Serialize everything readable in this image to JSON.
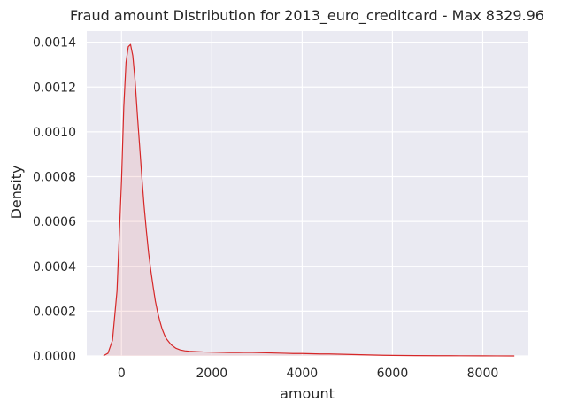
{
  "chart_data": {
    "type": "area",
    "title": "Fraud amount Distribution for 2013_euro_creditcard - Max 8329.96",
    "xlabel": "amount",
    "ylabel": "Density",
    "xlim": [
      -770,
      9010
    ],
    "ylim": [
      0,
      0.00145
    ],
    "xticks": [
      0,
      2000,
      4000,
      6000,
      8000
    ],
    "xtick_labels": [
      "0",
      "2000",
      "4000",
      "6000",
      "8000"
    ],
    "yticks": [
      0,
      0.0002,
      0.0004,
      0.0006,
      0.0008,
      0.001,
      0.0012,
      0.0014
    ],
    "ytick_labels": [
      "0.0000",
      "0.0002",
      "0.0004",
      "0.0006",
      "0.0008",
      "0.0010",
      "0.0012",
      "0.0014"
    ],
    "grid": true,
    "series": [
      {
        "color": "#d62728",
        "x": [
          -400,
          -300,
          -200,
          -100,
          0,
          50,
          100,
          150,
          200,
          250,
          300,
          350,
          400,
          450,
          500,
          550,
          600,
          650,
          700,
          750,
          800,
          850,
          900,
          950,
          1000,
          1100,
          1200,
          1300,
          1400,
          1500,
          1600,
          1700,
          1800,
          2000,
          2200,
          2400,
          2600,
          2800,
          3000,
          3200,
          3400,
          3600,
          3800,
          4000,
          4200,
          4400,
          4600,
          4800,
          5000,
          5200,
          5400,
          5600,
          5800,
          6000,
          6500,
          7000,
          7500,
          8000,
          8300,
          8700
        ],
        "y": [
          1e-06,
          1.2e-05,
          7e-05,
          0.00029,
          0.00078,
          0.00111,
          0.00131,
          0.00138,
          0.00139,
          0.00134,
          0.00123,
          0.00108,
          0.00094,
          0.0008,
          0.00067,
          0.00056,
          0.00046,
          0.00038,
          0.00031,
          0.000245,
          0.000195,
          0.000155,
          0.00012,
          9.5e-05,
          7.5e-05,
          5e-05,
          3.5e-05,
          2.7e-05,
          2.3e-05,
          2.1e-05,
          2e-05,
          1.9e-05,
          1.8e-05,
          1.7e-05,
          1.6e-05,
          1.5e-05,
          1.5e-05,
          1.6e-05,
          1.5e-05,
          1.4e-05,
          1.3e-05,
          1.2e-05,
          1.1e-05,
          1.1e-05,
          1e-05,
          9e-06,
          9e-06,
          8e-06,
          7e-06,
          6e-06,
          5e-06,
          4e-06,
          3e-06,
          2.5e-06,
          1.5e-06,
          1e-06,
          8e-07,
          5e-07,
          3e-07,
          1e-07
        ]
      }
    ],
    "colors": {
      "plot_background": "#eaeaf2",
      "grid": "#ffffff",
      "line": "#d62728"
    }
  }
}
